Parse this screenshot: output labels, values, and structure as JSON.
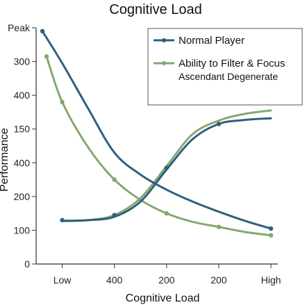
{
  "chart_data": {
    "type": "line",
    "title": "Cognitive Load",
    "xlabel": "Cognitive Load",
    "ylabel": "Performance",
    "x_tick_labels": [
      "Low",
      "400",
      "200",
      "200",
      "High"
    ],
    "y_tick_labels": [
      "0",
      "100",
      "200",
      "400",
      "150",
      "400",
      "300",
      "Peak"
    ],
    "y_range": [
      0,
      7
    ],
    "x_range": [
      0.5,
      5
    ],
    "grid": false,
    "legend_position": "top-right",
    "legend": {
      "entries": [
        "Normal Player",
        "Ability to Filter & Focus"
      ],
      "subtitle": "Ascendant Degenerate"
    },
    "series": [
      {
        "name": "Normal Player",
        "color": "#2f5f7e",
        "markers": [
          [
            0.62,
            6.9
          ],
          [
            1,
            1.3
          ],
          [
            2,
            1.45
          ],
          [
            3,
            2.85
          ],
          [
            4,
            4.15
          ],
          [
            5,
            1.05
          ]
        ],
        "curve_a": [
          [
            0.62,
            6.9
          ],
          [
            1,
            5.95
          ],
          [
            1.5,
            4.6
          ],
          [
            2,
            3.3
          ],
          [
            2.5,
            2.65
          ],
          [
            3,
            2.2
          ],
          [
            3.5,
            1.85
          ],
          [
            4,
            1.55
          ],
          [
            4.5,
            1.28
          ],
          [
            5,
            1.05
          ]
        ],
        "curve_b": [
          [
            1,
            1.28
          ],
          [
            1.5,
            1.3
          ],
          [
            2,
            1.4
          ],
          [
            2.5,
            1.85
          ],
          [
            3,
            2.8
          ],
          [
            3.5,
            3.7
          ],
          [
            4,
            4.15
          ],
          [
            4.5,
            4.27
          ],
          [
            5,
            4.32
          ]
        ]
      },
      {
        "name": "Ability to Filter & Focus",
        "color": "#84a870",
        "markers": [
          [
            0.7,
            6.15
          ],
          [
            1,
            4.8
          ],
          [
            2,
            2.5
          ],
          [
            3,
            1.5
          ],
          [
            4,
            1.1
          ],
          [
            5,
            0.85
          ]
        ],
        "curve_a": [
          [
            0.7,
            6.15
          ],
          [
            1,
            4.8
          ],
          [
            1.5,
            3.45
          ],
          [
            2,
            2.5
          ],
          [
            2.5,
            1.9
          ],
          [
            3,
            1.5
          ],
          [
            3.5,
            1.25
          ],
          [
            4,
            1.1
          ],
          [
            4.5,
            0.95
          ],
          [
            5,
            0.85
          ]
        ],
        "curve_b": [
          [
            1,
            1.27
          ],
          [
            1.5,
            1.3
          ],
          [
            2,
            1.45
          ],
          [
            2.5,
            1.95
          ],
          [
            3,
            2.9
          ],
          [
            3.5,
            3.85
          ],
          [
            4,
            4.25
          ],
          [
            4.5,
            4.45
          ],
          [
            5,
            4.55
          ]
        ]
      }
    ]
  }
}
